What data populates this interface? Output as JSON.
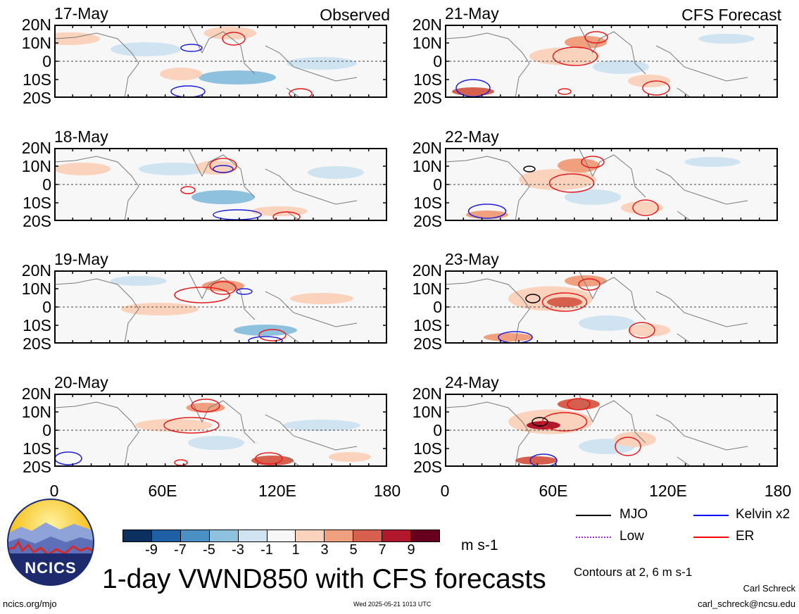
{
  "observed_label": "Observed",
  "forecast_label": "CFS Forecast",
  "lat_labels": [
    "20N",
    "10N",
    "0",
    "10S",
    "20S"
  ],
  "lon_labels": [
    "0",
    "60E",
    "120E",
    "180"
  ],
  "panels": [
    {
      "date": "17-May",
      "group": "Observed"
    },
    {
      "date": "18-May",
      "group": "Observed"
    },
    {
      "date": "19-May",
      "group": "Observed"
    },
    {
      "date": "20-May",
      "group": "Observed"
    },
    {
      "date": "21-May",
      "group": "CFS Forecast"
    },
    {
      "date": "22-May",
      "group": "CFS Forecast"
    },
    {
      "date": "23-May",
      "group": "CFS Forecast"
    },
    {
      "date": "24-May",
      "group": "CFS Forecast"
    }
  ],
  "colorbar": {
    "ticks": [
      "-9",
      "-7",
      "-5",
      "-3",
      "-1",
      "1",
      "3",
      "5",
      "7",
      "9"
    ],
    "colors": [
      "#0b2f5e",
      "#1f5fa6",
      "#4a90c4",
      "#8ec1de",
      "#cfe3f0",
      "#f7f7f7",
      "#fbd3bd",
      "#f0a07f",
      "#d6604d",
      "#b2182b",
      "#67001f"
    ],
    "units": "m s-1"
  },
  "legend": {
    "items": [
      {
        "label": "MJO",
        "color": "#000000"
      },
      {
        "label": "Kelvin x2",
        "color": "#0000ff"
      },
      {
        "label": "Low",
        "color": "#a020f0"
      },
      {
        "label": "ER",
        "color": "#ff0000"
      }
    ],
    "contours_note": "Contours at 2, 6 m s-1"
  },
  "logo_text": "NCICS",
  "title": "1-day VWND850 with CFS forecasts",
  "footer": {
    "url": "ncics.org/mjo",
    "timestamp": "Wed 2025-05-21 1013 UTC",
    "author": "Carl Schreck",
    "email": "carl_schreck@ncsu.edu"
  }
}
